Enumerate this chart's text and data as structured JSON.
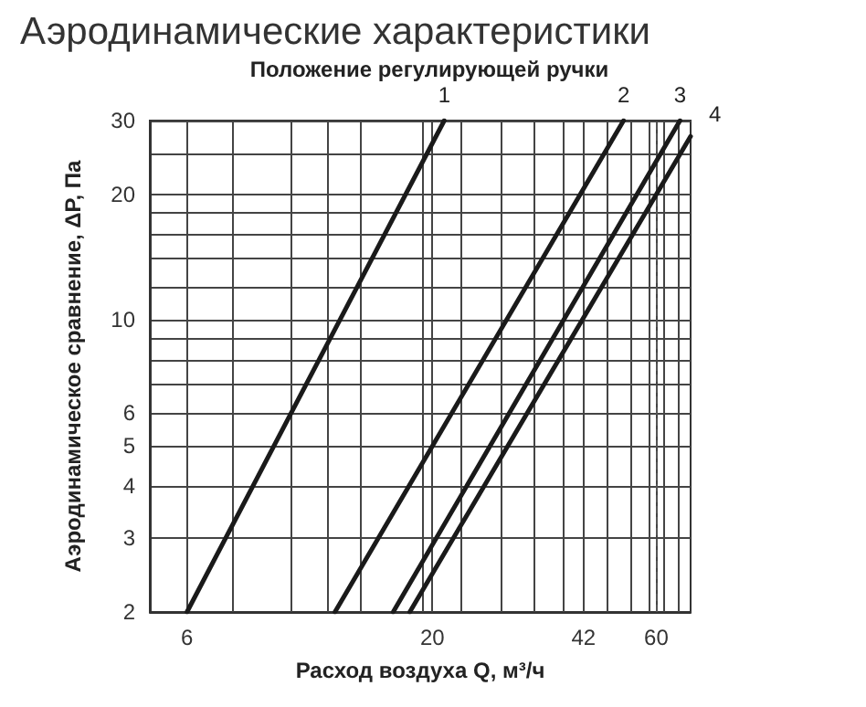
{
  "chart_data": {
    "type": "line",
    "title": "Аэродинамические характеристики",
    "subtitle": "Положение регулирующей ручки",
    "xlabel": "Расход воздуха Q, м³/ч",
    "ylabel": "Аэродинамическое сравнение, ΔP, Па",
    "log": "xy",
    "grid": true,
    "legend": false,
    "marker": "none",
    "line_style": "solid",
    "xlim": [
      5,
      71
    ],
    "ylim": [
      2,
      30
    ],
    "xticks": [
      6,
      {
        "value": 7.5,
        "label": null
      },
      {
        "value": 10,
        "label": null
      },
      {
        "value": 12,
        "label": null
      },
      {
        "value": 14,
        "label": null
      },
      {
        "value": 19,
        "label": null
      },
      20,
      {
        "value": 23,
        "label": null
      },
      {
        "value": 28,
        "label": null
      },
      {
        "value": 33,
        "label": null
      },
      {
        "value": 38,
        "label": null
      },
      42,
      {
        "value": 47,
        "label": null
      },
      {
        "value": 53,
        "label": null
      },
      {
        "value": 58,
        "label": null
      },
      60,
      {
        "value": 62,
        "label": null
      },
      {
        "value": 67,
        "label": null
      }
    ],
    "yticks": [
      2,
      3,
      4,
      5,
      6,
      {
        "value": 7,
        "label": null
      },
      {
        "value": 8,
        "label": null
      },
      {
        "value": 9,
        "label": null
      },
      10,
      {
        "value": 12,
        "label": null
      },
      {
        "value": 14,
        "label": null
      },
      {
        "value": 16,
        "label": null
      },
      {
        "value": 18,
        "label": null
      },
      20,
      {
        "value": 25,
        "label": null
      },
      30
    ],
    "ref_lines": [
      {
        "axis": "x",
        "value": 60,
        "color": "#555555",
        "line_style": "dashed"
      }
    ],
    "series": [
      {
        "name": "1",
        "color": "#1a1a1a",
        "x": [
          6,
          21.2
        ],
        "values": [
          2,
          30
        ]
      },
      {
        "name": "2",
        "color": "#1a1a1a",
        "x": [
          12.4,
          51.1
        ],
        "values": [
          2,
          30
        ]
      },
      {
        "name": "3",
        "color": "#1a1a1a",
        "x": [
          16.5,
          67.4
        ],
        "values": [
          2,
          30
        ]
      },
      {
        "name": "4",
        "color": "#1a1a1a",
        "x": [
          17.9,
          71
        ],
        "values": [
          2,
          27.5
        ]
      }
    ]
  }
}
